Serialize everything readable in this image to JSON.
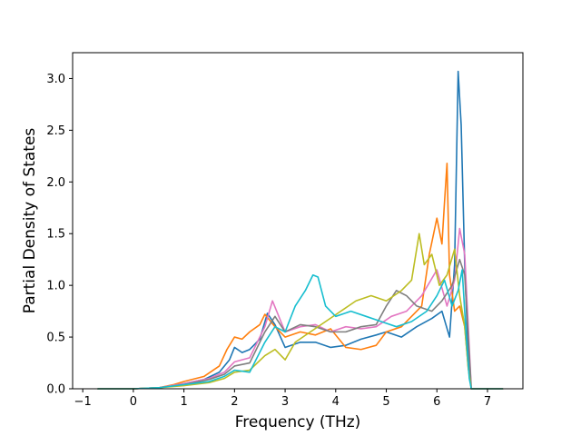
{
  "chart_data": {
    "type": "line",
    "title": "",
    "xlabel": "Frequency (THz)",
    "ylabel": "Partial Density of States",
    "xlim": [
      -1.2,
      7.7
    ],
    "ylim": [
      0.0,
      3.25
    ],
    "xticks": [
      -1,
      0,
      1,
      2,
      3,
      4,
      5,
      6,
      7
    ],
    "yticks": [
      0.0,
      0.5,
      1.0,
      1.5,
      2.0,
      2.5,
      3.0
    ],
    "xtick_labels": [
      "−1",
      "0",
      "1",
      "2",
      "3",
      "4",
      "5",
      "6",
      "7"
    ],
    "ytick_labels": [
      "0.0",
      "0.5",
      "1.0",
      "1.5",
      "2.0",
      "2.5",
      "3.0"
    ],
    "grid": false,
    "legend": "none",
    "colors": [
      "#1f77b4",
      "#ff7f0e",
      "#e377c2",
      "#7f7f7f",
      "#bcbd22",
      "#17becf"
    ],
    "series": [
      {
        "color": "#1f77b4",
        "x": [
          -0.7,
          0.0,
          0.5,
          0.8,
          1.0,
          1.4,
          1.7,
          1.9,
          2.0,
          2.15,
          2.3,
          2.5,
          2.65,
          2.8,
          3.0,
          3.3,
          3.6,
          3.9,
          4.2,
          4.5,
          4.8,
          5.0,
          5.3,
          5.6,
          5.9,
          6.1,
          6.25,
          6.35,
          6.42,
          6.48,
          6.55,
          6.62,
          6.68,
          7.3
        ],
        "y": [
          0.0,
          0.0,
          0.01,
          0.03,
          0.05,
          0.09,
          0.16,
          0.28,
          0.4,
          0.35,
          0.38,
          0.48,
          0.73,
          0.62,
          0.4,
          0.45,
          0.45,
          0.4,
          0.42,
          0.48,
          0.52,
          0.55,
          0.5,
          0.6,
          0.68,
          0.75,
          0.5,
          1.2,
          3.07,
          2.55,
          1.2,
          0.3,
          0.0,
          0.0
        ]
      },
      {
        "color": "#ff7f0e",
        "x": [
          -0.7,
          0.0,
          0.5,
          0.8,
          1.0,
          1.4,
          1.7,
          1.85,
          2.0,
          2.15,
          2.3,
          2.5,
          2.6,
          2.8,
          3.0,
          3.3,
          3.6,
          3.9,
          4.2,
          4.5,
          4.8,
          5.0,
          5.3,
          5.5,
          5.7,
          5.85,
          6.0,
          6.1,
          6.15,
          6.2,
          6.25,
          6.35,
          6.45,
          6.55,
          6.62,
          6.68,
          7.3
        ],
        "y": [
          0.0,
          0.0,
          0.01,
          0.04,
          0.07,
          0.12,
          0.22,
          0.38,
          0.5,
          0.48,
          0.55,
          0.62,
          0.72,
          0.6,
          0.5,
          0.55,
          0.52,
          0.58,
          0.4,
          0.38,
          0.42,
          0.55,
          0.6,
          0.7,
          0.8,
          1.3,
          1.65,
          1.4,
          1.8,
          2.18,
          1.1,
          0.75,
          0.8,
          0.6,
          0.2,
          0.0,
          0.0
        ]
      },
      {
        "color": "#e377c2",
        "x": [
          -0.7,
          0.0,
          0.5,
          1.0,
          1.5,
          1.8,
          2.0,
          2.3,
          2.6,
          2.75,
          3.0,
          3.3,
          3.6,
          3.9,
          4.2,
          4.5,
          4.8,
          5.1,
          5.4,
          5.7,
          6.0,
          6.2,
          6.35,
          6.45,
          6.55,
          6.62,
          6.68,
          7.3
        ],
        "y": [
          0.0,
          0.0,
          0.01,
          0.05,
          0.1,
          0.16,
          0.26,
          0.3,
          0.6,
          0.85,
          0.55,
          0.6,
          0.62,
          0.55,
          0.6,
          0.58,
          0.6,
          0.7,
          0.75,
          0.9,
          1.15,
          0.8,
          1.05,
          1.55,
          1.3,
          0.6,
          0.0,
          0.0
        ]
      },
      {
        "color": "#7f7f7f",
        "x": [
          -0.7,
          0.0,
          0.5,
          1.0,
          1.5,
          1.8,
          2.0,
          2.3,
          2.6,
          2.8,
          3.0,
          3.3,
          3.6,
          3.9,
          4.2,
          4.5,
          4.8,
          5.0,
          5.2,
          5.4,
          5.6,
          5.9,
          6.1,
          6.3,
          6.45,
          6.55,
          6.62,
          6.68,
          7.3
        ],
        "y": [
          0.0,
          0.0,
          0.01,
          0.04,
          0.09,
          0.14,
          0.22,
          0.25,
          0.55,
          0.7,
          0.55,
          0.62,
          0.6,
          0.55,
          0.55,
          0.6,
          0.62,
          0.8,
          0.95,
          0.9,
          0.8,
          0.75,
          0.85,
          1.0,
          1.25,
          1.1,
          0.5,
          0.0,
          0.0
        ]
      },
      {
        "color": "#bcbd22",
        "x": [
          -0.7,
          0.0,
          0.5,
          1.0,
          1.5,
          1.8,
          2.0,
          2.3,
          2.6,
          2.8,
          3.0,
          3.2,
          3.5,
          3.8,
          4.1,
          4.4,
          4.7,
          5.0,
          5.3,
          5.5,
          5.65,
          5.75,
          5.9,
          6.05,
          6.2,
          6.35,
          6.45,
          6.55,
          6.62,
          6.68,
          7.3
        ],
        "y": [
          0.0,
          0.0,
          0.01,
          0.03,
          0.06,
          0.1,
          0.16,
          0.18,
          0.32,
          0.38,
          0.28,
          0.45,
          0.55,
          0.65,
          0.75,
          0.85,
          0.9,
          0.85,
          0.95,
          1.05,
          1.5,
          1.2,
          1.3,
          1.0,
          1.1,
          1.35,
          0.9,
          0.6,
          0.2,
          0.0,
          0.0
        ]
      },
      {
        "color": "#17becf",
        "x": [
          -0.7,
          0.0,
          0.5,
          1.0,
          1.5,
          1.8,
          2.0,
          2.3,
          2.6,
          2.8,
          3.0,
          3.2,
          3.4,
          3.55,
          3.65,
          3.8,
          4.0,
          4.3,
          4.6,
          4.9,
          5.2,
          5.5,
          5.8,
          6.0,
          6.15,
          6.3,
          6.42,
          6.5,
          6.58,
          6.64,
          6.68,
          7.3
        ],
        "y": [
          0.0,
          0.0,
          0.01,
          0.04,
          0.07,
          0.12,
          0.18,
          0.16,
          0.45,
          0.6,
          0.55,
          0.8,
          0.95,
          1.1,
          1.08,
          0.8,
          0.7,
          0.75,
          0.7,
          0.65,
          0.6,
          0.65,
          0.75,
          0.9,
          1.05,
          0.8,
          0.95,
          1.15,
          0.5,
          0.1,
          0.0,
          0.0
        ]
      }
    ]
  }
}
